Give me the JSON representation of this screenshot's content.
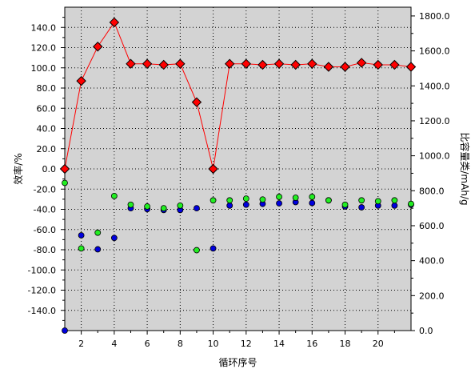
{
  "chart_data": {
    "type": "scatter",
    "title": "",
    "xlabel": "循环序号",
    "ylabel_left": "效率/%",
    "ylabel_right": "比容量类/mAh/g",
    "xlim": [
      1,
      22
    ],
    "ylim_left": [
      -160,
      160
    ],
    "ylim_right": [
      0,
      1850
    ],
    "grid": true,
    "x_ticks": [
      2,
      4,
      6,
      8,
      10,
      12,
      14,
      16,
      18,
      20
    ],
    "y_ticks_left": [
      140,
      120,
      100,
      80,
      60,
      40,
      20,
      0,
      -20,
      -40,
      -60,
      -80,
      -100,
      -120,
      -140
    ],
    "y_ticks_right": [
      1800,
      1600,
      1400,
      1200,
      1000,
      800,
      600,
      400,
      200,
      0
    ],
    "y_tick_labels_left": [
      "140.0",
      "120.0",
      "100.0",
      "80.0",
      "60.0",
      "40.0",
      "20.0",
      "0.0",
      "-20.0",
      "-40.0",
      "-60.0",
      "-80.0",
      "-100.0",
      "-120.0",
      "-140.0"
    ],
    "y_tick_labels_right": [
      "1800.0",
      "1600.0",
      "1400.0",
      "1200.0",
      "1000.0",
      "800.0",
      "600.0",
      "400.0",
      "200.0",
      "0.0"
    ],
    "x_tick_labels": [
      "2",
      "4",
      "6",
      "8",
      "10",
      "12",
      "14",
      "16",
      "18",
      "20"
    ],
    "series": [
      {
        "axis": "left",
        "color": "#ff0000",
        "marker": "diamond",
        "line": true,
        "x": [
          1,
          2,
          3,
          4,
          5,
          6,
          7,
          8,
          9,
          10,
          11,
          12,
          13,
          14,
          15,
          16,
          17,
          18,
          19,
          20,
          21,
          22
        ],
        "values": [
          0,
          87,
          121,
          145,
          104,
          104,
          103,
          104,
          66,
          0,
          104,
          104,
          103,
          104,
          103,
          104,
          101,
          101,
          105,
          103,
          103,
          101
        ]
      },
      {
        "axis": "right",
        "color": "#0000dd",
        "marker": "circle",
        "line": false,
        "x": [
          1,
          2,
          3,
          4,
          5,
          6,
          7,
          8,
          9,
          10,
          11,
          12,
          13,
          14,
          15,
          16,
          17,
          18,
          19,
          20,
          21,
          22
        ],
        "values": [
          0,
          545,
          465,
          530,
          700,
          695,
          690,
          690,
          700,
          470,
          715,
          720,
          725,
          728,
          735,
          730,
          745,
          710,
          705,
          715,
          715,
          720
        ]
      },
      {
        "axis": "right",
        "color": "#22ee22",
        "marker": "circle",
        "line": false,
        "x": [
          1,
          2,
          3,
          4,
          5,
          6,
          7,
          8,
          9,
          10,
          11,
          12,
          13,
          14,
          15,
          16,
          17,
          18,
          19,
          20,
          21,
          22
        ],
        "values": [
          845,
          470,
          560,
          770,
          720,
          710,
          700,
          715,
          460,
          745,
          745,
          755,
          750,
          765,
          760,
          765,
          745,
          720,
          745,
          740,
          745,
          725
        ]
      }
    ]
  }
}
